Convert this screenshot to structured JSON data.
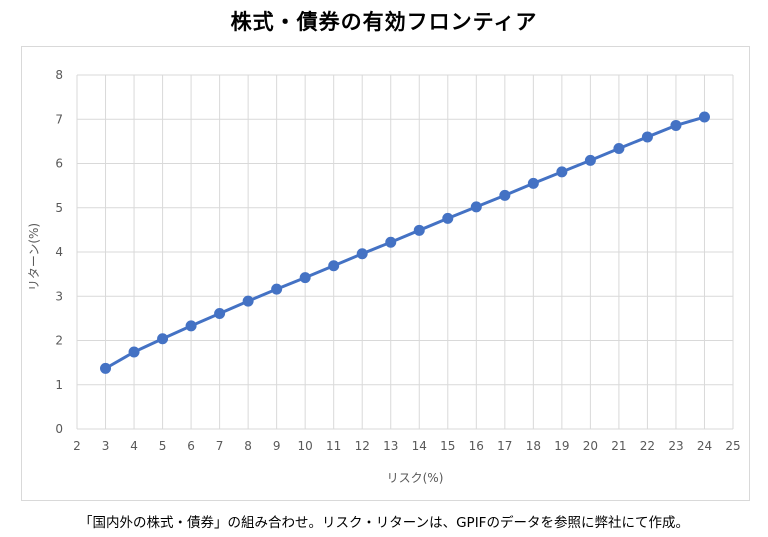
{
  "title": "株式・債券の有効フロンティア",
  "note": "「国内外の株式・債券」の組み合わせ。リスク・リターンは、GPIFのデータを参照に弊社にて作成。",
  "colors": {
    "line": "#4472C4",
    "grid": "#d9d9d9",
    "tick_text": "#595959"
  },
  "chart_data": {
    "type": "line",
    "title": "株式・債券の有効フロンティア",
    "xlabel": "リスク(%)",
    "ylabel": "リターン(%)",
    "xlim": [
      2,
      25
    ],
    "ylim": [
      0,
      8
    ],
    "xticks": [
      2,
      3,
      4,
      5,
      6,
      7,
      8,
      9,
      10,
      11,
      12,
      13,
      14,
      15,
      16,
      17,
      18,
      19,
      20,
      21,
      22,
      23,
      24,
      25
    ],
    "yticks": [
      0,
      1,
      2,
      3,
      4,
      5,
      6,
      7,
      8
    ],
    "grid": true,
    "legend": "none",
    "series": [
      {
        "x": [
          3,
          4,
          5,
          6,
          7,
          8,
          9,
          10,
          11,
          12,
          13,
          14,
          15,
          16,
          17,
          18,
          19,
          20,
          21,
          22,
          23,
          24
        ],
        "values": [
          1.37,
          1.74,
          2.04,
          2.33,
          2.61,
          2.89,
          3.16,
          3.42,
          3.69,
          3.96,
          4.22,
          4.49,
          4.76,
          5.02,
          5.28,
          5.55,
          5.81,
          6.07,
          6.34,
          6.6,
          6.86,
          7.05
        ]
      }
    ]
  }
}
